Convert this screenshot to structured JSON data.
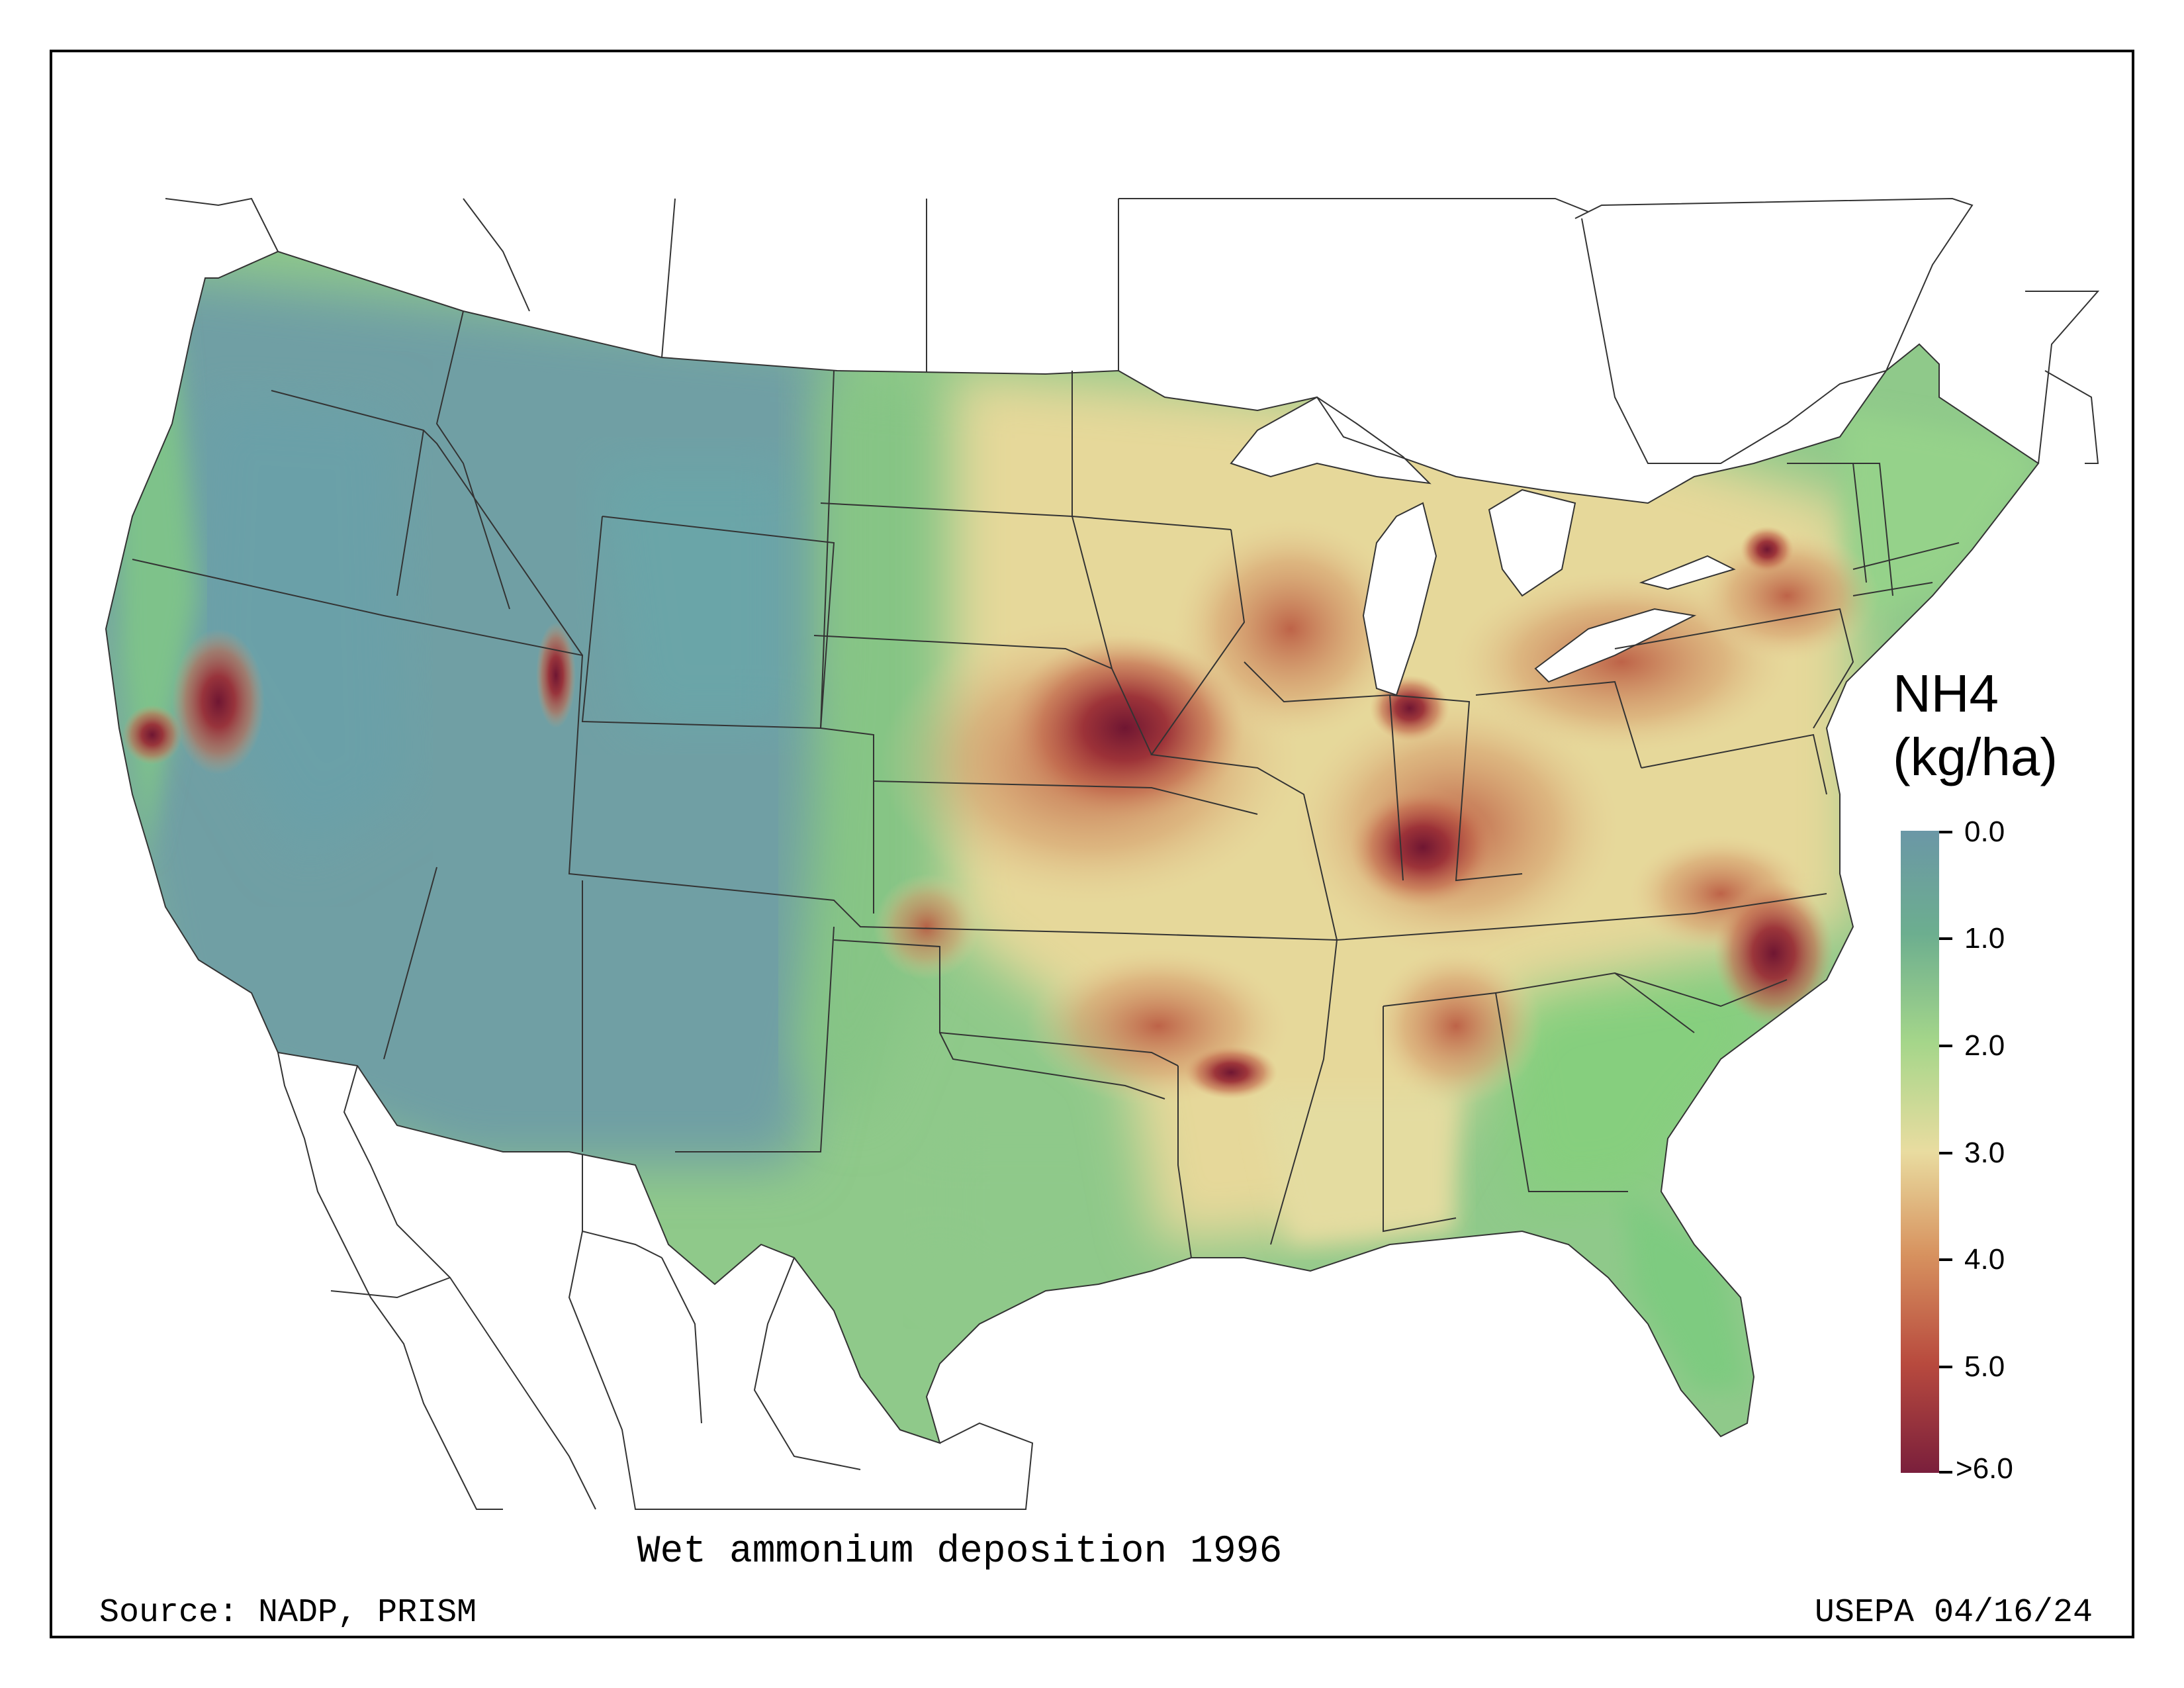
{
  "map": {
    "title": "Wet ammonium deposition 1996",
    "source": "Source: NADP, PRISM",
    "credit": "USEPA 04/16/24"
  },
  "legend": {
    "title_line1": "NH4",
    "title_line2": "(kg/ha)",
    "ticks": [
      "0.0",
      "1.0",
      "2.0",
      "3.0",
      "4.0",
      "5.0",
      ">6.0"
    ],
    "colors": [
      "#6b97a6",
      "#6cae8f",
      "#a5d68a",
      "#e9dca0",
      "#d7925f",
      "#b84a3e",
      "#7a1f3c"
    ]
  }
}
